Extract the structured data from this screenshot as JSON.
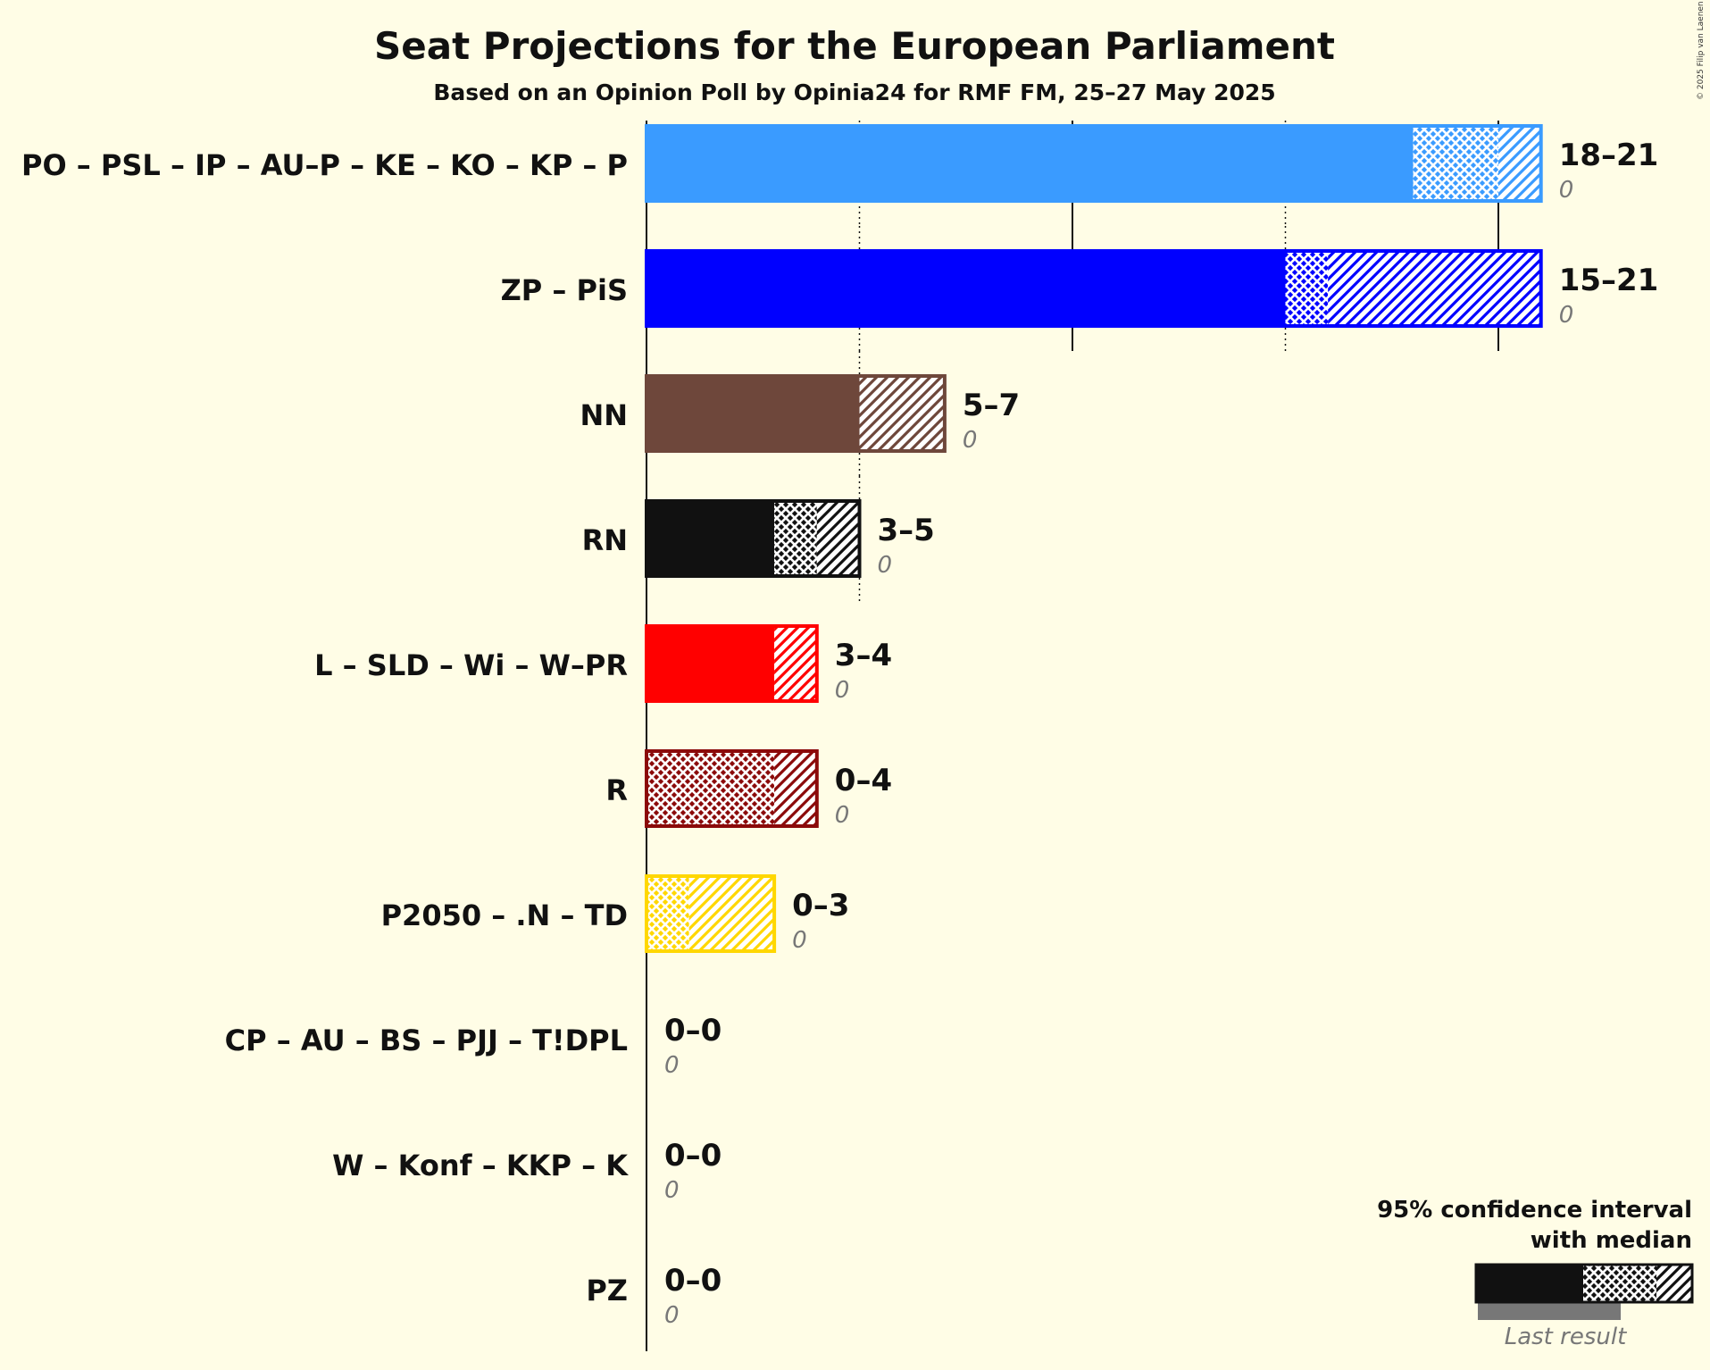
{
  "chart_data": {
    "type": "bar",
    "title": "Seat Projections for the European Parliament",
    "subtitle": "Based on an Opinion Poll by Opinia24 for RMF FM, 25–27 May 2025",
    "credit": "© 2025 Filip van Laenen",
    "xlim": [
      0,
      21
    ],
    "gridlines_solid": [
      0,
      10,
      20
    ],
    "gridlines_dotted": [
      5,
      15
    ],
    "series": [
      {
        "party": "PO – PSL – IP – AU–P – KE – KO – KP – P",
        "low": 18,
        "median_low": 18,
        "median_high": 20,
        "high": 21,
        "range_label": "18–21",
        "last_result": 0,
        "last_label": "0",
        "color": "#3A9BFF"
      },
      {
        "party": "ZP – PiS",
        "low": 15,
        "median_low": 15,
        "median_high": 16,
        "high": 21,
        "range_label": "15–21",
        "last_result": 0,
        "last_label": "0",
        "color": "#0000FF"
      },
      {
        "party": "NN",
        "low": 5,
        "median_low": 5,
        "median_high": 5,
        "high": 7,
        "range_label": "5–7",
        "last_result": 0,
        "last_label": "0",
        "color": "#6E473B"
      },
      {
        "party": "RN",
        "low": 3,
        "median_low": 3,
        "median_high": 4,
        "high": 5,
        "range_label": "3–5",
        "last_result": 0,
        "last_label": "0",
        "color": "#111111"
      },
      {
        "party": "L – SLD – Wi – W–PR",
        "low": 3,
        "median_low": 3,
        "median_high": 3,
        "high": 4,
        "range_label": "3–4",
        "last_result": 0,
        "last_label": "0",
        "color": "#FF0000"
      },
      {
        "party": "R",
        "low": 0,
        "median_low": 0,
        "median_high": 3,
        "high": 4,
        "range_label": "0–4",
        "last_result": 0,
        "last_label": "0",
        "color": "#8B0A0A"
      },
      {
        "party": "P2050 – .N – TD",
        "low": 0,
        "median_low": 0,
        "median_high": 1,
        "high": 3,
        "range_label": "0–3",
        "last_result": 0,
        "last_label": "0",
        "color": "#FFD700"
      },
      {
        "party": "CP – AU – BS – PJJ – T!DPL",
        "low": 0,
        "median_low": 0,
        "median_high": 0,
        "high": 0,
        "range_label": "0–0",
        "last_result": 0,
        "last_label": "0",
        "color": "#888888"
      },
      {
        "party": "W – Konf – KKP – K",
        "low": 0,
        "median_low": 0,
        "median_high": 0,
        "high": 0,
        "range_label": "0–0",
        "last_result": 0,
        "last_label": "0",
        "color": "#888888"
      },
      {
        "party": "PZ",
        "low": 0,
        "median_low": 0,
        "median_high": 0,
        "high": 0,
        "range_label": "0–0",
        "last_result": 0,
        "last_label": "0",
        "color": "#888888"
      }
    ],
    "legend": {
      "line1": "95% confidence interval",
      "line2": "with median",
      "last": "Last result",
      "color": "#111111",
      "last_color": "#777777"
    }
  }
}
